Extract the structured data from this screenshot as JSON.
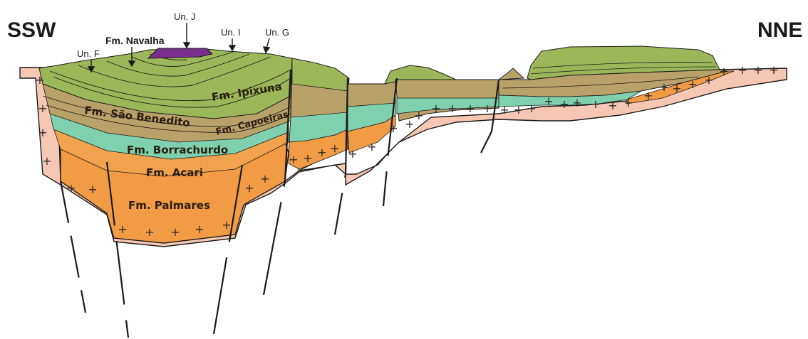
{
  "orientation": {
    "left": "SSW",
    "right": "NNE"
  },
  "formations": {
    "navalha": "Fm. Navalha",
    "ipixuna": "Fm. Ipixuna",
    "sao_benedito": "Fm. São Benedito",
    "capoeiras": "Fm. Capoeiras",
    "borrachurdo": "Fm. Borrachurdo",
    "acari": "Fm. Acari",
    "palmares": "Fm. Palmares"
  },
  "units": {
    "f": "Un. F",
    "j": "Un. J",
    "i": "Un. I",
    "g": "Un. G"
  },
  "colors": {
    "basement": "#f6c8b4",
    "palmares": "#f29b45",
    "acari": "#f0a24d",
    "borrachurdo": "#7ed0ae",
    "sao_benedito": "#b9a26a",
    "capoeiras": "#b19a5e",
    "ipixuna": "#9cb75a",
    "navalha_cap": "#7a2d8c",
    "line": "#1a1a1a"
  },
  "basement_symbol": "+"
}
